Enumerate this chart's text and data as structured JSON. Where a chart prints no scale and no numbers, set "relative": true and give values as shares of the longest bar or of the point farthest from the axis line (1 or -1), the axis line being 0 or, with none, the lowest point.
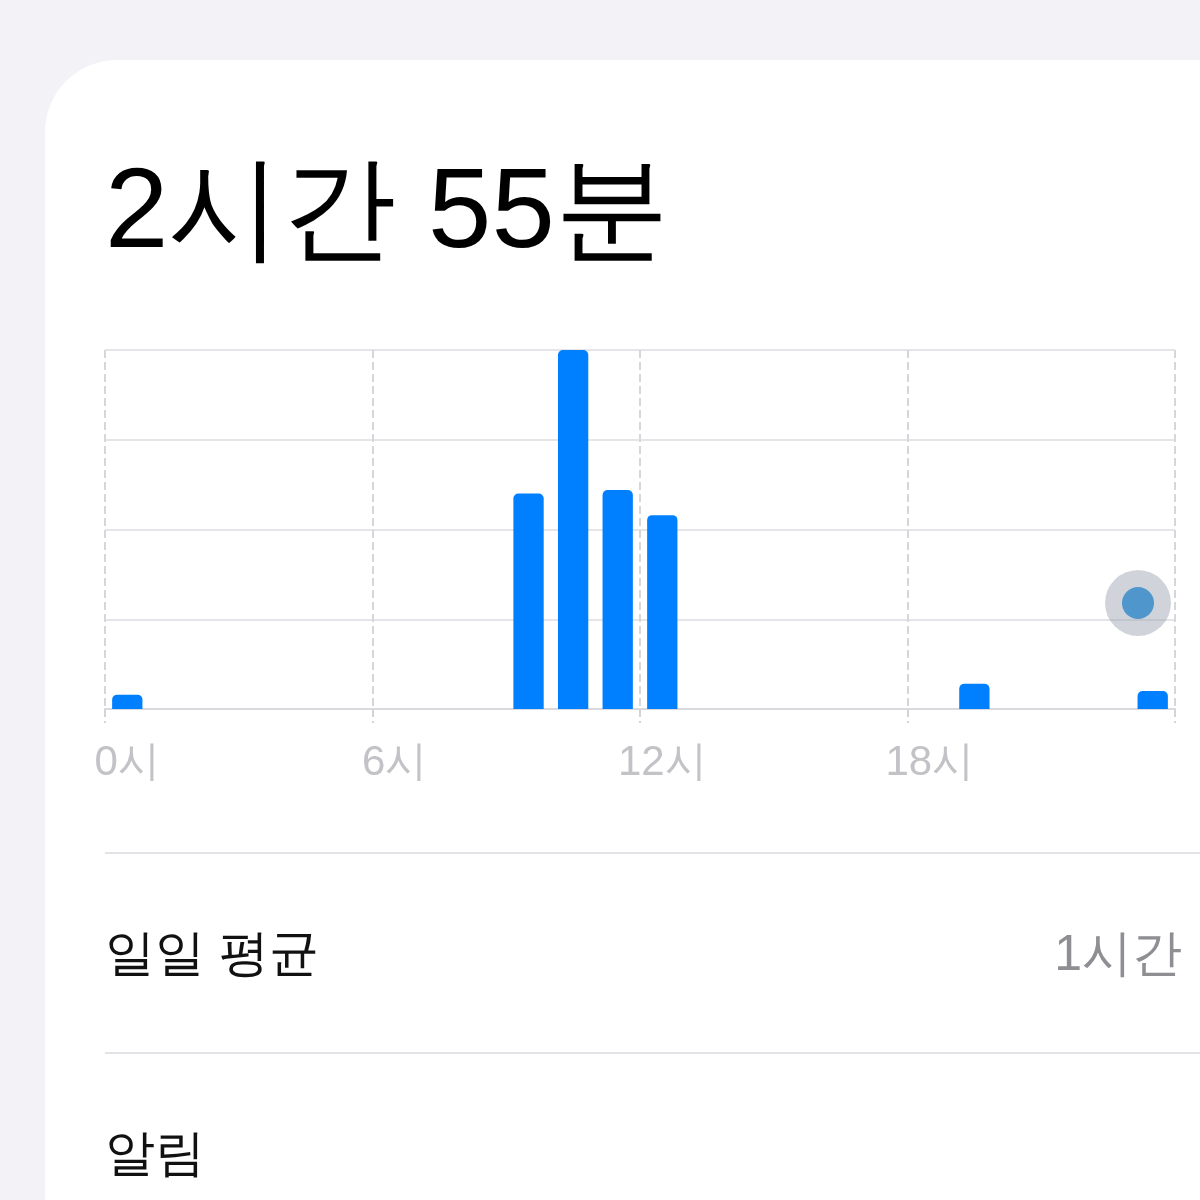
{
  "chart_data": {
    "type": "bar",
    "title": "2시간 55분",
    "categories": [
      "0시",
      null,
      null,
      null,
      null,
      null,
      "6시",
      null,
      null,
      null,
      null,
      null,
      "12시",
      null,
      null,
      null,
      null,
      null,
      "18시",
      null,
      null,
      null,
      null,
      null
    ],
    "values": [
      0.04,
      0,
      0,
      0,
      0,
      0,
      0,
      0,
      0,
      0.6,
      1,
      0.61,
      0.54,
      0,
      0,
      0,
      0,
      0,
      0,
      0.07,
      0,
      0,
      0,
      0.05
    ],
    "color": "#0080ff",
    "relative": true,
    "grid": true,
    "annotations": [
      "일일 평균",
      "1시간",
      "알림"
    ]
  }
}
